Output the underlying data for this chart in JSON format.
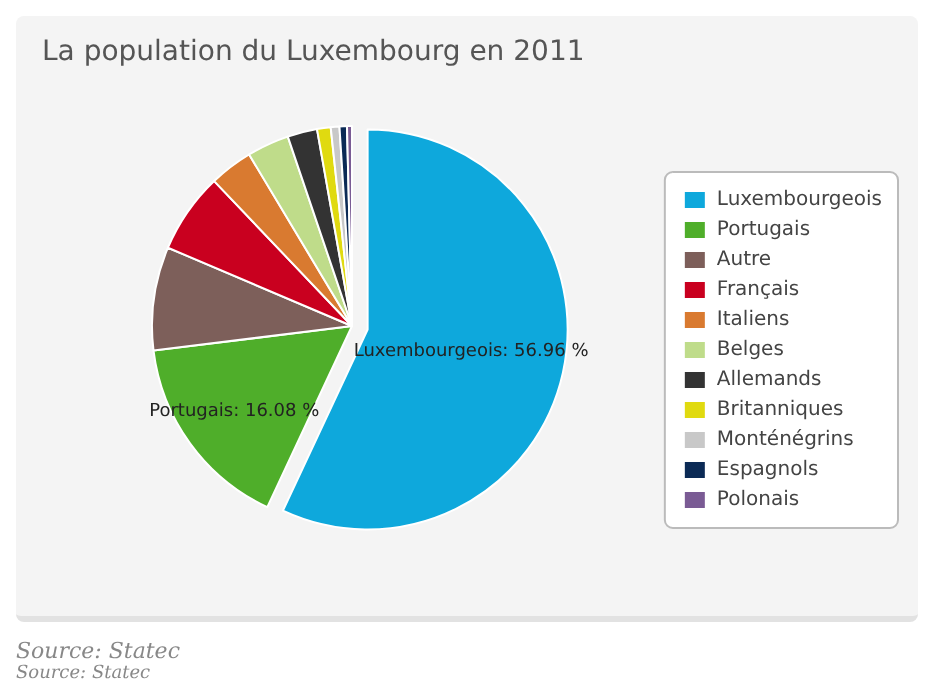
{
  "chart_data": {
    "type": "pie",
    "title": "La population du Luxembourg en 2011",
    "categories": [
      "Luxembourgeois",
      "Portugais",
      "Autre",
      "Français",
      "Italiens",
      "Belges",
      "Allemands",
      "Britanniques",
      "Monténégrins",
      "Espagnols",
      "Polonais"
    ],
    "values": [
      56.96,
      16.08,
      8.36,
      6.5,
      3.5,
      3.4,
      2.4,
      1.1,
      0.7,
      0.6,
      0.4
    ],
    "colors": [
      "#0ea8dc",
      "#4fae2a",
      "#7d5f5a",
      "#c9001f",
      "#d97a30",
      "#bfdc8a",
      "#333333",
      "#e0da10",
      "#c8c8c8",
      "#0b2a55",
      "#7a5b94"
    ],
    "value_labels": [
      "Luxembourgeois: 56.96 %",
      "Portugais: 16.08 %",
      null,
      null,
      null,
      null,
      null,
      null,
      null,
      null,
      null
    ],
    "legend": "right",
    "annotations": [
      "Source: Statec",
      "Source: Statec"
    ]
  }
}
